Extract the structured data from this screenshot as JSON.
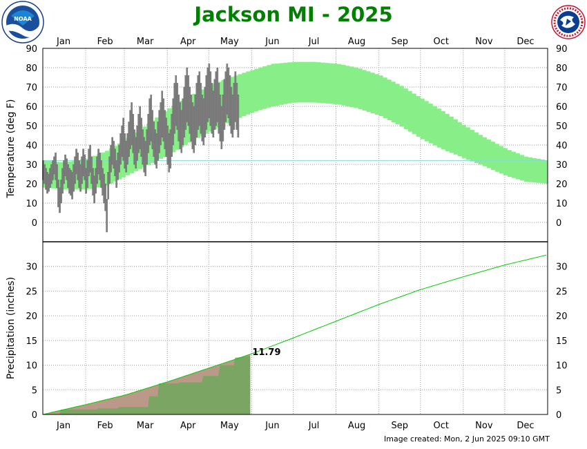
{
  "title": "Jackson MI - 2025",
  "footer": "Image created: Mon, 2 Jun 2025 09:10 GMT",
  "logos": {
    "left": "NOAA",
    "right": "NATIONAL WEATHER SERVICE"
  },
  "colors": {
    "title": "#008000",
    "normal_band": "#88ee88",
    "observed_temp": "#808080",
    "freezing_line": "#7fdbd5",
    "precip_normal": "#00cc00",
    "precip_observed_fill": "#66aa55",
    "precip_normal_fill": "#bb9988"
  },
  "chart_data": [
    {
      "type": "bar",
      "title": "Temperature",
      "ylabel": "Temperature (deg F)",
      "months": [
        "Jan",
        "Feb",
        "Mar",
        "Apr",
        "May",
        "Jun",
        "Jul",
        "Aug",
        "Sep",
        "Oct",
        "Nov",
        "Dec"
      ],
      "ylim": [
        -10,
        90
      ],
      "yticks": [
        0,
        10,
        20,
        30,
        40,
        50,
        60,
        70,
        80,
        90
      ],
      "freezing_line": 32,
      "normal_band": {
        "doy": [
          1,
          15,
          32,
          46,
          60,
          74,
          91,
          105,
          121,
          135,
          152,
          166,
          182,
          196,
          213,
          227,
          244,
          258,
          274,
          288,
          305,
          319,
          335,
          349,
          365
        ],
        "high": [
          32,
          31,
          33,
          37,
          43,
          50,
          59,
          65,
          71,
          75,
          79,
          82,
          83,
          83,
          82,
          80,
          76,
          71,
          64,
          58,
          50,
          44,
          38,
          34,
          32
        ],
        "low": [
          18,
          17,
          17,
          19,
          24,
          29,
          35,
          41,
          47,
          52,
          57,
          60,
          62,
          62,
          61,
          59,
          55,
          50,
          43,
          38,
          33,
          29,
          24,
          21,
          20
        ]
      },
      "observed_low": [
        22,
        20,
        17,
        15,
        16,
        18,
        20,
        22,
        25,
        22,
        18,
        8,
        5,
        10,
        15,
        20,
        24,
        22,
        18,
        15,
        14,
        12,
        16,
        20,
        25,
        22,
        18,
        16,
        20,
        24,
        22,
        15,
        18,
        24,
        26,
        20,
        14,
        10,
        15,
        20,
        25,
        22,
        18,
        14,
        10,
        6,
        -5,
        12,
        20,
        26,
        30,
        28,
        24,
        18,
        22,
        26,
        30,
        34,
        32,
        28,
        26,
        30,
        34,
        38,
        40,
        36,
        30,
        28,
        32,
        36,
        38,
        34,
        30,
        26,
        24,
        30,
        36,
        40,
        42,
        38,
        34,
        30,
        28,
        32,
        36,
        40,
        44,
        42,
        38,
        34,
        30,
        26,
        28,
        34,
        40,
        46,
        50,
        48,
        42,
        38,
        36,
        40,
        44,
        48,
        52,
        50,
        46,
        42,
        38,
        36,
        40,
        44,
        48,
        50,
        46,
        42,
        40,
        44,
        48,
        52,
        54,
        50,
        46,
        44,
        48,
        50,
        52,
        46,
        42,
        38,
        42,
        48,
        52,
        56,
        54,
        50,
        46,
        44,
        48,
        52,
        48,
        44
      ],
      "observed_high": [
        32,
        30,
        28,
        26,
        25,
        28,
        30,
        32,
        34,
        36,
        30,
        22,
        18,
        22,
        28,
        32,
        35,
        33,
        30,
        28,
        27,
        26,
        30,
        34,
        38,
        36,
        32,
        30,
        34,
        38,
        35,
        28,
        32,
        38,
        40,
        34,
        28,
        24,
        28,
        34,
        38,
        36,
        32,
        28,
        25,
        20,
        12,
        26,
        34,
        40,
        44,
        42,
        38,
        32,
        36,
        40,
        46,
        50,
        54,
        46,
        42,
        46,
        52,
        58,
        62,
        56,
        48,
        44,
        50,
        56,
        60,
        54,
        48,
        44,
        42,
        48,
        56,
        64,
        66,
        58,
        52,
        48,
        46,
        52,
        58,
        62,
        68,
        64,
        58,
        54,
        50,
        46,
        48,
        56,
        64,
        72,
        76,
        72,
        66,
        62,
        58,
        64,
        70,
        76,
        80,
        76,
        70,
        66,
        62,
        60,
        66,
        72,
        76,
        78,
        72,
        66,
        64,
        70,
        76,
        80,
        82,
        78,
        72,
        68,
        74,
        78,
        80,
        72,
        66,
        60,
        66,
        74,
        78,
        82,
        80,
        76,
        70,
        66,
        72,
        78,
        72,
        66
      ]
    },
    {
      "type": "area",
      "title": "Precipitation",
      "ylabel": "Precipitation (inches)",
      "months": [
        "Jan",
        "Feb",
        "Mar",
        "Apr",
        "May",
        "Jun",
        "Jul",
        "Aug",
        "Sep",
        "Oct",
        "Nov",
        "Dec"
      ],
      "ylim": [
        0,
        35
      ],
      "yticks": [
        0,
        5,
        10,
        15,
        20,
        25,
        30
      ],
      "ytick_labels": [
        "0",
        "5",
        "10",
        "15",
        "20",
        "25",
        "30"
      ],
      "normal_cumulative": {
        "doy": [
          1,
          32,
          60,
          91,
          121,
          152,
          182,
          213,
          244,
          274,
          305,
          335,
          365
        ],
        "value": [
          0,
          2.0,
          3.9,
          6.6,
          9.4,
          12.3,
          15.5,
          18.9,
          22.3,
          25.3,
          27.9,
          30.3,
          32.3
        ]
      },
      "observed_cumulative": {
        "doy": [
          1,
          13,
          14,
          40,
          41,
          55,
          56,
          77,
          78,
          84,
          85,
          99,
          100,
          116,
          117,
          128,
          129,
          139,
          140,
          151
        ],
        "value": [
          0,
          0,
          1.0,
          1.0,
          1.2,
          1.2,
          1.5,
          1.5,
          3.7,
          3.7,
          6.3,
          6.3,
          6.5,
          6.5,
          7.8,
          7.8,
          10.0,
          10.0,
          11.5,
          11.79
        ]
      },
      "annotation": "11.79"
    }
  ]
}
